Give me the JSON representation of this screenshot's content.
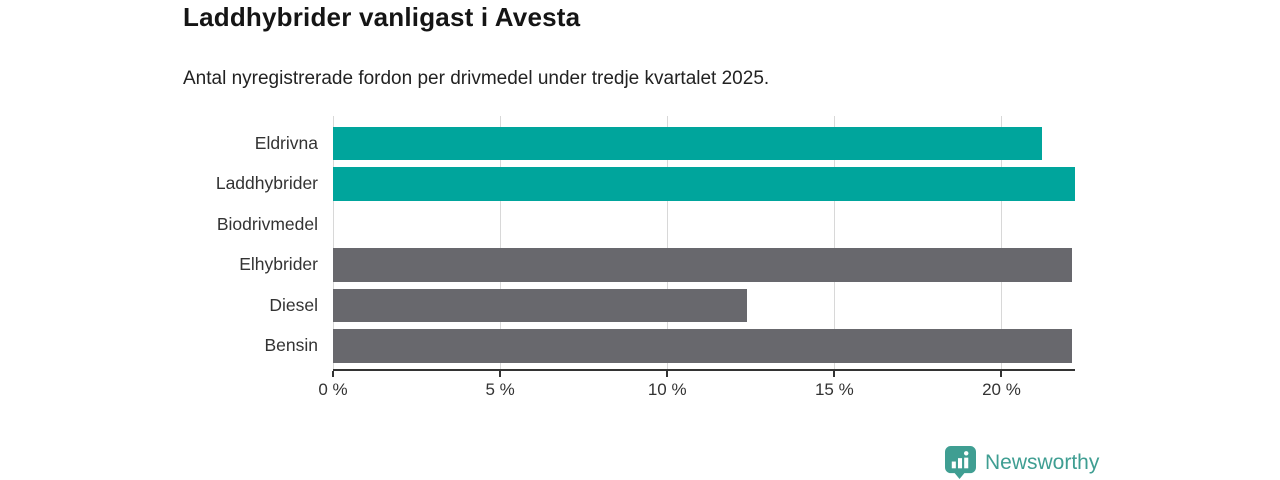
{
  "chart": {
    "title": "Laddhybrider vanligast i Avesta",
    "subtitle": "Antal nyregistrerade fordon per drivmedel under tredje kvartalet 2025."
  },
  "chart_data": {
    "type": "bar",
    "orientation": "horizontal",
    "title": "Laddhybrider vanligast i Avesta",
    "subtitle": "Antal nyregistrerade fordon per drivmedel under tredje kvartalet 2025.",
    "categories": [
      "Eldrivna",
      "Laddhybrider",
      "Biodrivmedel",
      "Elhybrider",
      "Diesel",
      "Bensin"
    ],
    "values": [
      21.2,
      22.2,
      0,
      22.1,
      12.4,
      22.1
    ],
    "unit": "%",
    "bar_color_keys": [
      "teal",
      "teal",
      "none",
      "gray",
      "gray",
      "gray"
    ],
    "xlabel": "",
    "ylabel": "",
    "xlim": [
      0,
      22.2
    ],
    "xticks": [
      0,
      5,
      10,
      15,
      20
    ],
    "xtick_labels": [
      "0 %",
      "5 %",
      "10 %",
      "15 %",
      "20 %"
    ],
    "grid": "vertical",
    "legend": "none"
  },
  "colors": {
    "teal": "#00a59c",
    "gray": "#68686d",
    "none": "transparent",
    "gridline": "#d8d8d8",
    "axis": "#333333",
    "brand": "#3f9e92"
  },
  "footer": {
    "brand": "Newsworthy"
  }
}
